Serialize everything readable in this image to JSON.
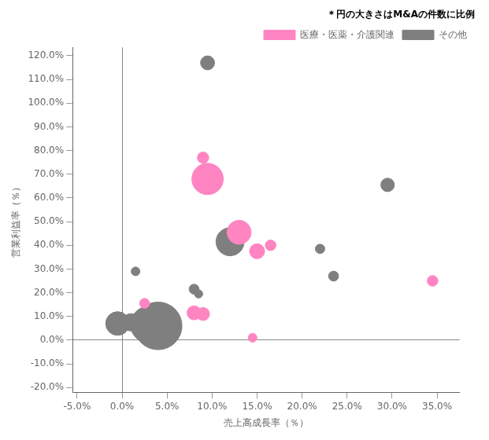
{
  "chart_data": {
    "type": "bubble",
    "xlabel": "売上高成長率（％）",
    "ylabel": "営業利益率（％）",
    "annotation": "＊円の大きさはM&Aの件数に比例",
    "xlim": [
      -0.055,
      0.375
    ],
    "ylim": [
      -0.22,
      1.235
    ],
    "xticks": [
      {
        "value": -0.05,
        "label": "-5.0%"
      },
      {
        "value": 0.0,
        "label": "0.0%"
      },
      {
        "value": 0.05,
        "label": "5.0%"
      },
      {
        "value": 0.1,
        "label": "10.0%"
      },
      {
        "value": 0.15,
        "label": "15.0%"
      },
      {
        "value": 0.2,
        "label": "20.0%"
      },
      {
        "value": 0.25,
        "label": "25.0%"
      },
      {
        "value": 0.3,
        "label": "30.0%"
      },
      {
        "value": 0.35,
        "label": "35.0%"
      }
    ],
    "yticks": [
      {
        "value": -0.2,
        "label": "-20.0%"
      },
      {
        "value": -0.1,
        "label": "-10.0%"
      },
      {
        "value": 0.0,
        "label": "0.0%"
      },
      {
        "value": 0.1,
        "label": "10.0%"
      },
      {
        "value": 0.2,
        "label": "20.0%"
      },
      {
        "value": 0.3,
        "label": "30.0%"
      },
      {
        "value": 0.4,
        "label": "40.0%"
      },
      {
        "value": 0.5,
        "label": "50.0%"
      },
      {
        "value": 0.6,
        "label": "60.0%"
      },
      {
        "value": 0.7,
        "label": "70.0%"
      },
      {
        "value": 0.8,
        "label": "80.0%"
      },
      {
        "value": 0.9,
        "label": "90.0%"
      },
      {
        "value": 1.0,
        "label": "100.0%"
      },
      {
        "value": 1.1,
        "label": "110.0%"
      },
      {
        "value": 1.2,
        "label": "120.0%"
      }
    ],
    "grid": false,
    "legend": "upper right",
    "series": [
      {
        "name": "医療・医薬・介護関連",
        "color": "#FF85C2",
        "x": [
          0.09,
          0.095,
          0.13,
          0.15,
          0.165,
          0.025,
          0.08,
          0.09,
          0.145,
          0.345
        ],
        "values": [
          0.77,
          0.68,
          0.455,
          0.375,
          0.4,
          0.155,
          0.115,
          0.11,
          0.01,
          0.25
        ],
        "size": [
          85,
          650,
          380,
          150,
          75,
          65,
          130,
          110,
          50,
          75
        ]
      },
      {
        "name": "その他",
        "color": "#7F7F7F",
        "x": [
          0.095,
          0.12,
          0.015,
          0.08,
          0.085,
          0.295,
          0.22,
          0.235,
          -0.005,
          0.01,
          0.02,
          0.03,
          0.035,
          0.04,
          0.05
        ],
        "values": [
          1.17,
          0.415,
          0.29,
          0.215,
          0.195,
          0.655,
          0.385,
          0.27,
          0.07,
          0.075,
          0.065,
          0.065,
          0.055,
          0.06,
          0.06
        ],
        "size": [
          130,
          520,
          50,
          65,
          45,
          120,
          58,
          65,
          370,
          200,
          160,
          900,
          270,
          1500,
          210
        ]
      }
    ]
  }
}
